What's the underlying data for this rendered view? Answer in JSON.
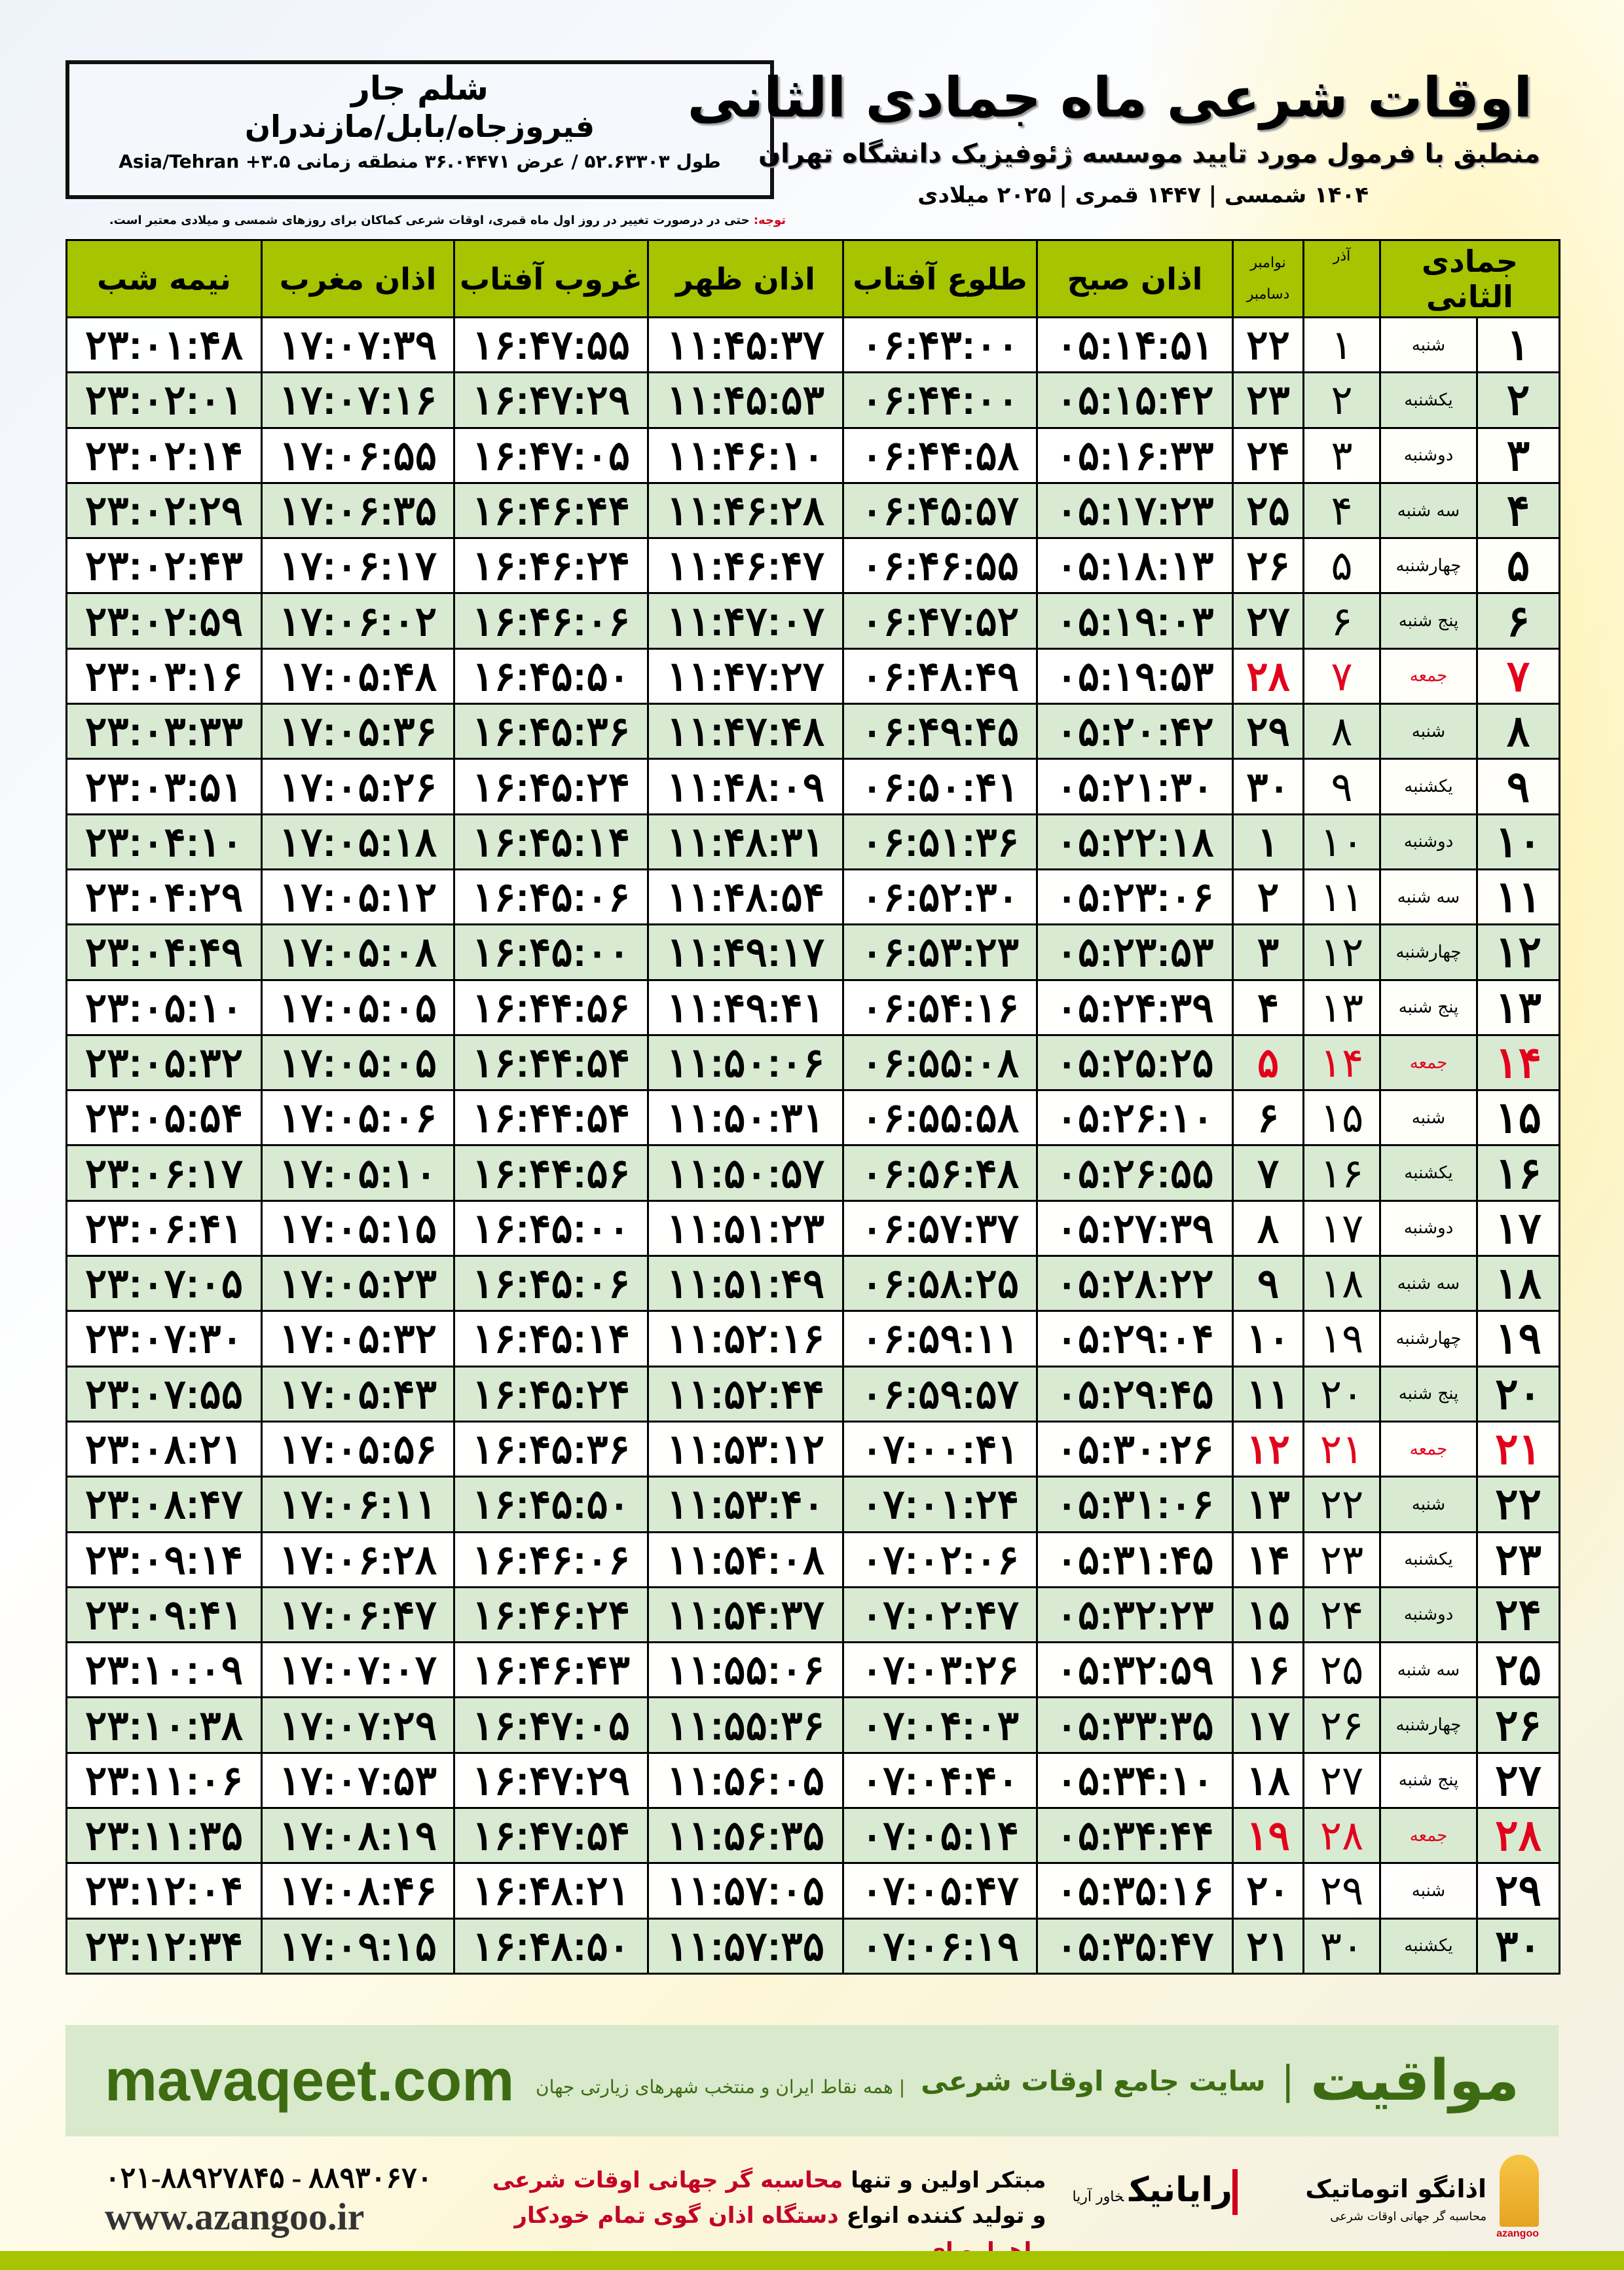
{
  "header": {
    "title": "اوقات شرعی ماه جمادی الثانی",
    "subtitle": "منطبق با فرمول مورد تایید موسسه ژئوفیزیک دانشگاه تهران",
    "years": "۱۴۰۴ شمسی | ۱۴۴۷ قمری | ۲۰۲۵ میلادی"
  },
  "location": {
    "city": "شلم جار",
    "region": "فیروزجاه/بابل/مازندران",
    "coords": "طول ۵۲.۶۳۳۰۳ / عرض ۳۶.۰۴۴۷۱ منطقه زمانی ۳.۵+ Asia/Tehran"
  },
  "note": {
    "label": "توجه:",
    "text": " حتی در درصورت تغییر در روز اول ماه قمری، اوقات شرعی کماکان برای روزهای شمسی و میلادی معتبر است."
  },
  "colors": {
    "header_green": "#a6c400",
    "row_alt": "#d9ead3",
    "friday_red": "#e3001b",
    "brand_green": "#3d6b12"
  },
  "table": {
    "headers": {
      "hijri": "جمادی الثانی",
      "azar": "آذر",
      "greg_top": "نوامبر",
      "greg_bottom": "دسامبر",
      "fajr": "اذان صبح",
      "sunrise": "طلوع آفتاب",
      "dhuhr": "اذان ظهر",
      "sunset": "غروب آفتاب",
      "maghrib": "اذان مغرب",
      "midnight": "نیمه شب"
    },
    "rows": [
      [
        "۱",
        "شنبه",
        "۱",
        "۲۲",
        "۰۵:۱۴:۵۱",
        "۰۶:۴۳:۰۰",
        "۱۱:۴۵:۳۷",
        "۱۶:۴۷:۵۵",
        "۱۷:۰۷:۳۹",
        "۲۳:۰۱:۴۸"
      ],
      [
        "۲",
        "یکشنبه",
        "۲",
        "۲۳",
        "۰۵:۱۵:۴۲",
        "۰۶:۴۴:۰۰",
        "۱۱:۴۵:۵۳",
        "۱۶:۴۷:۲۹",
        "۱۷:۰۷:۱۶",
        "۲۳:۰۲:۰۱"
      ],
      [
        "۳",
        "دوشنبه",
        "۳",
        "۲۴",
        "۰۵:۱۶:۳۳",
        "۰۶:۴۴:۵۸",
        "۱۱:۴۶:۱۰",
        "۱۶:۴۷:۰۵",
        "۱۷:۰۶:۵۵",
        "۲۳:۰۲:۱۴"
      ],
      [
        "۴",
        "سه شنبه",
        "۴",
        "۲۵",
        "۰۵:۱۷:۲۳",
        "۰۶:۴۵:۵۷",
        "۱۱:۴۶:۲۸",
        "۱۶:۴۶:۴۴",
        "۱۷:۰۶:۳۵",
        "۲۳:۰۲:۲۹"
      ],
      [
        "۵",
        "چهارشنبه",
        "۵",
        "۲۶",
        "۰۵:۱۸:۱۳",
        "۰۶:۴۶:۵۵",
        "۱۱:۴۶:۴۷",
        "۱۶:۴۶:۲۴",
        "۱۷:۰۶:۱۷",
        "۲۳:۰۲:۴۳"
      ],
      [
        "۶",
        "پنج شنبه",
        "۶",
        "۲۷",
        "۰۵:۱۹:۰۳",
        "۰۶:۴۷:۵۲",
        "۱۱:۴۷:۰۷",
        "۱۶:۴۶:۰۶",
        "۱۷:۰۶:۰۲",
        "۲۳:۰۲:۵۹"
      ],
      [
        "۷",
        "جمعه",
        "۷",
        "۲۸",
        "۰۵:۱۹:۵۳",
        "۰۶:۴۸:۴۹",
        "۱۱:۴۷:۲۷",
        "۱۶:۴۵:۵۰",
        "۱۷:۰۵:۴۸",
        "۲۳:۰۳:۱۶"
      ],
      [
        "۸",
        "شنبه",
        "۸",
        "۲۹",
        "۰۵:۲۰:۴۲",
        "۰۶:۴۹:۴۵",
        "۱۱:۴۷:۴۸",
        "۱۶:۴۵:۳۶",
        "۱۷:۰۵:۳۶",
        "۲۳:۰۳:۳۳"
      ],
      [
        "۹",
        "یکشنبه",
        "۹",
        "۳۰",
        "۰۵:۲۱:۳۰",
        "۰۶:۵۰:۴۱",
        "۱۱:۴۸:۰۹",
        "۱۶:۴۵:۲۴",
        "۱۷:۰۵:۲۶",
        "۲۳:۰۳:۵۱"
      ],
      [
        "۱۰",
        "دوشنبه",
        "۱۰",
        "۱",
        "۰۵:۲۲:۱۸",
        "۰۶:۵۱:۳۶",
        "۱۱:۴۸:۳۱",
        "۱۶:۴۵:۱۴",
        "۱۷:۰۵:۱۸",
        "۲۳:۰۴:۱۰"
      ],
      [
        "۱۱",
        "سه شنبه",
        "۱۱",
        "۲",
        "۰۵:۲۳:۰۶",
        "۰۶:۵۲:۳۰",
        "۱۱:۴۸:۵۴",
        "۱۶:۴۵:۰۶",
        "۱۷:۰۵:۱۲",
        "۲۳:۰۴:۲۹"
      ],
      [
        "۱۲",
        "چهارشنبه",
        "۱۲",
        "۳",
        "۰۵:۲۳:۵۳",
        "۰۶:۵۳:۲۳",
        "۱۱:۴۹:۱۷",
        "۱۶:۴۵:۰۰",
        "۱۷:۰۵:۰۸",
        "۲۳:۰۴:۴۹"
      ],
      [
        "۱۳",
        "پنج شنبه",
        "۱۳",
        "۴",
        "۰۵:۲۴:۳۹",
        "۰۶:۵۴:۱۶",
        "۱۱:۴۹:۴۱",
        "۱۶:۴۴:۵۶",
        "۱۷:۰۵:۰۵",
        "۲۳:۰۵:۱۰"
      ],
      [
        "۱۴",
        "جمعه",
        "۱۴",
        "۵",
        "۰۵:۲۵:۲۵",
        "۰۶:۵۵:۰۸",
        "۱۱:۵۰:۰۶",
        "۱۶:۴۴:۵۴",
        "۱۷:۰۵:۰۵",
        "۲۳:۰۵:۳۲"
      ],
      [
        "۱۵",
        "شنبه",
        "۱۵",
        "۶",
        "۰۵:۲۶:۱۰",
        "۰۶:۵۵:۵۸",
        "۱۱:۵۰:۳۱",
        "۱۶:۴۴:۵۴",
        "۱۷:۰۵:۰۶",
        "۲۳:۰۵:۵۴"
      ],
      [
        "۱۶",
        "یکشنبه",
        "۱۶",
        "۷",
        "۰۵:۲۶:۵۵",
        "۰۶:۵۶:۴۸",
        "۱۱:۵۰:۵۷",
        "۱۶:۴۴:۵۶",
        "۱۷:۰۵:۱۰",
        "۲۳:۰۶:۱۷"
      ],
      [
        "۱۷",
        "دوشنبه",
        "۱۷",
        "۸",
        "۰۵:۲۷:۳۹",
        "۰۶:۵۷:۳۷",
        "۱۱:۵۱:۲۳",
        "۱۶:۴۵:۰۰",
        "۱۷:۰۵:۱۵",
        "۲۳:۰۶:۴۱"
      ],
      [
        "۱۸",
        "سه شنبه",
        "۱۸",
        "۹",
        "۰۵:۲۸:۲۲",
        "۰۶:۵۸:۲۵",
        "۱۱:۵۱:۴۹",
        "۱۶:۴۵:۰۶",
        "۱۷:۰۵:۲۳",
        "۲۳:۰۷:۰۵"
      ],
      [
        "۱۹",
        "چهارشنبه",
        "۱۹",
        "۱۰",
        "۰۵:۲۹:۰۴",
        "۰۶:۵۹:۱۱",
        "۱۱:۵۲:۱۶",
        "۱۶:۴۵:۱۴",
        "۱۷:۰۵:۳۲",
        "۲۳:۰۷:۳۰"
      ],
      [
        "۲۰",
        "پنج شنبه",
        "۲۰",
        "۱۱",
        "۰۵:۲۹:۴۵",
        "۰۶:۵۹:۵۷",
        "۱۱:۵۲:۴۴",
        "۱۶:۴۵:۲۴",
        "۱۷:۰۵:۴۳",
        "۲۳:۰۷:۵۵"
      ],
      [
        "۲۱",
        "جمعه",
        "۲۱",
        "۱۲",
        "۰۵:۳۰:۲۶",
        "۰۷:۰۰:۴۱",
        "۱۱:۵۳:۱۲",
        "۱۶:۴۵:۳۶",
        "۱۷:۰۵:۵۶",
        "۲۳:۰۸:۲۱"
      ],
      [
        "۲۲",
        "شنبه",
        "۲۲",
        "۱۳",
        "۰۵:۳۱:۰۶",
        "۰۷:۰۱:۲۴",
        "۱۱:۵۳:۴۰",
        "۱۶:۴۵:۵۰",
        "۱۷:۰۶:۱۱",
        "۲۳:۰۸:۴۷"
      ],
      [
        "۲۳",
        "یکشنبه",
        "۲۳",
        "۱۴",
        "۰۵:۳۱:۴۵",
        "۰۷:۰۲:۰۶",
        "۱۱:۵۴:۰۸",
        "۱۶:۴۶:۰۶",
        "۱۷:۰۶:۲۸",
        "۲۳:۰۹:۱۴"
      ],
      [
        "۲۴",
        "دوشنبه",
        "۲۴",
        "۱۵",
        "۰۵:۳۲:۲۳",
        "۰۷:۰۲:۴۷",
        "۱۱:۵۴:۳۷",
        "۱۶:۴۶:۲۴",
        "۱۷:۰۶:۴۷",
        "۲۳:۰۹:۴۱"
      ],
      [
        "۲۵",
        "سه شنبه",
        "۲۵",
        "۱۶",
        "۰۵:۳۲:۵۹",
        "۰۷:۰۳:۲۶",
        "۱۱:۵۵:۰۶",
        "۱۶:۴۶:۴۳",
        "۱۷:۰۷:۰۷",
        "۲۳:۱۰:۰۹"
      ],
      [
        "۲۶",
        "چهارشنبه",
        "۲۶",
        "۱۷",
        "۰۵:۳۳:۳۵",
        "۰۷:۰۴:۰۳",
        "۱۱:۵۵:۳۶",
        "۱۶:۴۷:۰۵",
        "۱۷:۰۷:۲۹",
        "۲۳:۱۰:۳۸"
      ],
      [
        "۲۷",
        "پنج شنبه",
        "۲۷",
        "۱۸",
        "۰۵:۳۴:۱۰",
        "۰۷:۰۴:۴۰",
        "۱۱:۵۶:۰۵",
        "۱۶:۴۷:۲۹",
        "۱۷:۰۷:۵۳",
        "۲۳:۱۱:۰۶"
      ],
      [
        "۲۸",
        "جمعه",
        "۲۸",
        "۱۹",
        "۰۵:۳۴:۴۴",
        "۰۷:۰۵:۱۴",
        "۱۱:۵۶:۳۵",
        "۱۶:۴۷:۵۴",
        "۱۷:۰۸:۱۹",
        "۲۳:۱۱:۳۵"
      ],
      [
        "۲۹",
        "شنبه",
        "۲۹",
        "۲۰",
        "۰۵:۳۵:۱۶",
        "۰۷:۰۵:۴۷",
        "۱۱:۵۷:۰۵",
        "۱۶:۴۸:۲۱",
        "۱۷:۰۸:۴۶",
        "۲۳:۱۲:۰۴"
      ],
      [
        "۳۰",
        "یکشنبه",
        "۳۰",
        "۲۱",
        "۰۵:۳۵:۴۷",
        "۰۷:۰۶:۱۹",
        "۱۱:۵۷:۳۵",
        "۱۶:۴۸:۵۰",
        "۱۷:۰۹:۱۵",
        "۲۳:۱۲:۳۴"
      ]
    ]
  },
  "footer": {
    "brand": "مواقیت",
    "sep": "|",
    "tagline": "سایت جامع اوقات شرعی",
    "tagline2": "| همه نقاط ایران و منتخب شهرهای زیارتی جهان",
    "site": "mavaqeet.com"
  },
  "bottom": {
    "logo1_name": "اذانگو اتوماتیک",
    "logo1_sub": "محاسبه گر جهانی اوقات شرعی",
    "logo1_en": "azangoo",
    "logo2_name": "رایانیک",
    "logo2_sub": "خاور آریا",
    "promo_line1_a": "مبتکر اولین و تنها ",
    "promo_line1_b": "محاسبه گر جهانی اوقات شرعی",
    "promo_line2_a": "و تولید کننده انواع ",
    "promo_line2_b": "دستگاه اذان گوی تمام خودکار ماهواره ای",
    "phone": "۰۲۱-۸۸۹۲۷۸۴۵ - ۸۸۹۳۰۶۷۰",
    "website": "www.azangoo.ir"
  }
}
